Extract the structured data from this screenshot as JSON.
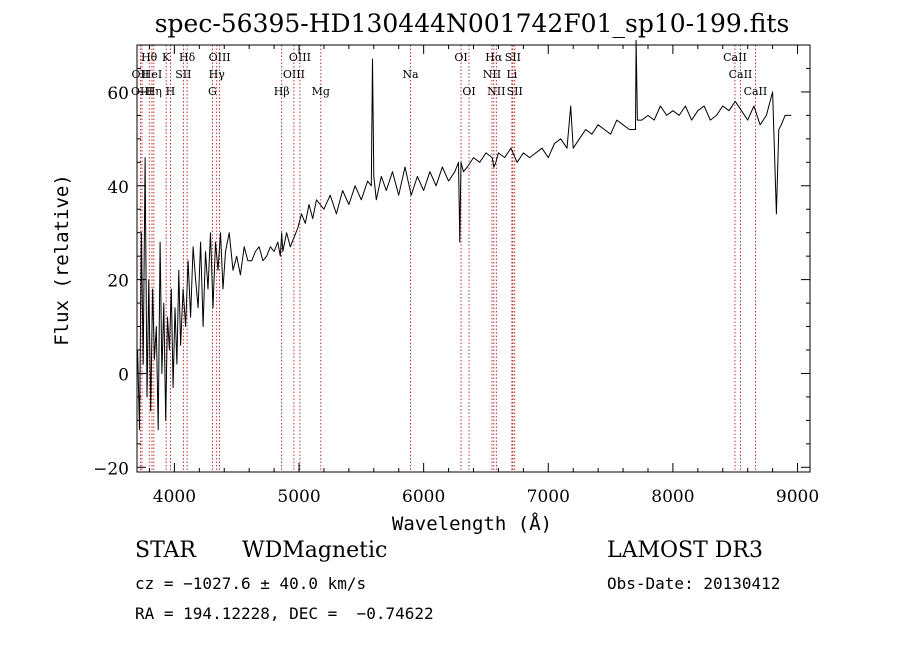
{
  "chart_data": {
    "type": "line",
    "title": "spec-56395-HD130444N001742F01_sp10-199.fits",
    "xlabel": "Wavelength (Å)",
    "ylabel": "Flux (relative)",
    "xlim": [
      3700,
      9100
    ],
    "ylim": [
      -21,
      70
    ],
    "x_ticks": [
      4000,
      5000,
      6000,
      7000,
      8000,
      9000
    ],
    "y_ticks": [
      -20,
      0,
      20,
      40,
      60
    ],
    "grid": false,
    "series": [
      {
        "name": "flux",
        "x": [
          3705,
          3720,
          3735,
          3750,
          3765,
          3780,
          3795,
          3810,
          3825,
          3840,
          3855,
          3870,
          3885,
          3900,
          3915,
          3930,
          3945,
          3960,
          3975,
          3990,
          4005,
          4020,
          4035,
          4050,
          4070,
          4090,
          4110,
          4130,
          4150,
          4170,
          4190,
          4210,
          4230,
          4250,
          4270,
          4290,
          4310,
          4330,
          4350,
          4370,
          4390,
          4410,
          4440,
          4470,
          4500,
          4530,
          4560,
          4590,
          4620,
          4650,
          4680,
          4710,
          4740,
          4770,
          4800,
          4830,
          4850,
          4861,
          4870,
          4900,
          4930,
          4960,
          4990,
          5020,
          5050,
          5080,
          5110,
          5140,
          5170,
          5200,
          5250,
          5300,
          5350,
          5400,
          5450,
          5500,
          5550,
          5580,
          5590,
          5600,
          5620,
          5660,
          5700,
          5750,
          5800,
          5850,
          5900,
          5950,
          6000,
          6050,
          6100,
          6150,
          6200,
          6250,
          6280,
          6290,
          6300,
          6320,
          6350,
          6400,
          6450,
          6500,
          6550,
          6563,
          6580,
          6600,
          6650,
          6700,
          6750,
          6800,
          6850,
          6900,
          6950,
          7000,
          7050,
          7100,
          7150,
          7180,
          7200,
          7250,
          7300,
          7350,
          7400,
          7450,
          7500,
          7550,
          7600,
          7650,
          7700,
          7705,
          7715,
          7750,
          7800,
          7850,
          7900,
          7950,
          8000,
          8050,
          8100,
          8150,
          8200,
          8250,
          8300,
          8350,
          8400,
          8450,
          8500,
          8550,
          8600,
          8650,
          8700,
          8750,
          8800,
          8830,
          8850,
          8870,
          8900,
          8950
        ],
        "values": [
          5,
          -12,
          30,
          2,
          46,
          -5,
          20,
          -8,
          18,
          3,
          10,
          -12,
          28,
          0,
          15,
          -10,
          12,
          5,
          18,
          -3,
          14,
          2,
          22,
          6,
          18,
          10,
          24,
          12,
          27,
          20,
          14,
          28,
          10,
          26,
          18,
          30,
          14,
          28,
          22,
          30,
          18,
          26,
          30,
          22,
          25,
          21,
          27,
          24,
          24,
          26,
          27,
          24,
          25,
          27,
          26,
          28,
          25,
          30,
          26,
          30,
          27,
          29,
          31,
          34,
          32,
          36,
          33,
          37,
          36,
          35,
          38,
          34,
          39,
          36,
          40,
          37,
          41,
          40,
          67,
          42,
          37,
          42,
          39,
          43,
          38,
          44,
          38,
          42,
          39,
          43,
          40,
          44,
          41,
          43,
          45,
          28,
          45,
          43,
          44,
          46,
          45,
          47,
          46,
          44,
          45,
          47,
          46,
          48,
          45,
          47,
          46,
          47,
          48,
          46,
          49,
          50,
          48,
          57,
          48,
          50,
          52,
          51,
          53,
          52,
          51,
          54,
          53,
          52,
          52,
          71,
          54,
          54,
          55,
          54,
          57,
          55,
          56,
          55,
          57,
          54,
          56,
          57,
          54,
          55,
          57,
          56,
          58,
          56,
          54,
          57,
          53,
          55,
          60,
          34,
          52,
          53,
          55,
          55
        ]
      }
    ],
    "line_features": [
      {
        "label": "Hθ",
        "x": 3798,
        "row": 0
      },
      {
        "label": "OII",
        "x": 3727,
        "row": 1
      },
      {
        "label": "HeI",
        "x": 3820,
        "row": 1
      },
      {
        "label": "OIII",
        "x": 3740,
        "row": 2
      },
      {
        "label": "Hη",
        "x": 3835,
        "row": 2
      },
      {
        "label": "K",
        "x": 3934,
        "row": 0
      },
      {
        "label": "H",
        "x": 3968,
        "row": 2
      },
      {
        "label": "SII",
        "x": 4072,
        "row": 1
      },
      {
        "label": "Hδ",
        "x": 4102,
        "row": 0
      },
      {
        "label": "OIII",
        "x": 4363,
        "row": 0
      },
      {
        "label": "Hγ",
        "x": 4340,
        "row": 1
      },
      {
        "label": "G",
        "x": 4305,
        "row": 2
      },
      {
        "label": "Hβ",
        "x": 4861,
        "row": 2
      },
      {
        "label": "OIII",
        "x": 5007,
        "row": 0
      },
      {
        "label": "OIII",
        "x": 4959,
        "row": 1
      },
      {
        "label": "Mg",
        "x": 5175,
        "row": 2
      },
      {
        "label": "Na",
        "x": 5894,
        "row": 1
      },
      {
        "label": "OI",
        "x": 6300,
        "row": 0
      },
      {
        "label": "OI",
        "x": 6364,
        "row": 2
      },
      {
        "label": "Hα",
        "x": 6563,
        "row": 0
      },
      {
        "label": "SII",
        "x": 6716,
        "row": 0
      },
      {
        "label": "NII",
        "x": 6548,
        "row": 1
      },
      {
        "label": "Li",
        "x": 6708,
        "row": 1
      },
      {
        "label": "NII",
        "x": 6583,
        "row": 2
      },
      {
        "label": "SII",
        "x": 6731,
        "row": 2
      },
      {
        "label": "CaII",
        "x": 8498,
        "row": 0
      },
      {
        "label": "CaII",
        "x": 8542,
        "row": 1
      },
      {
        "label": "CaII",
        "x": 8662,
        "row": 2
      }
    ]
  },
  "info": {
    "class": "STAR",
    "subclass": "WDMagnetic",
    "survey": "LAMOST DR3",
    "redshift": "cz = −1027.6 ± 40.0 km/s",
    "obs_date": "Obs-Date: 20130412",
    "coords": "RA = 194.12228, DEC =  −0.74622"
  },
  "colors": {
    "line_marker": "#b00000",
    "spectrum": "#000000",
    "background": "#ffffff"
  }
}
